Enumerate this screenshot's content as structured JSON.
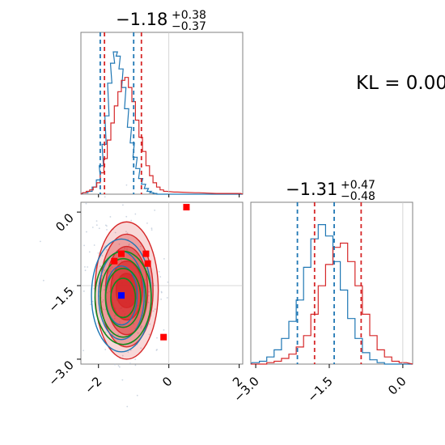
{
  "figure": {
    "kl_label": "KL = 0.00",
    "title_x": {
      "main": "−1.18",
      "sup": "+0.38",
      "sub": "−0.37"
    },
    "title_y": {
      "main": "−1.31",
      "sup": "+0.47",
      "sub": "−0.48"
    }
  },
  "colors": {
    "blue": "#1f77b4",
    "red": "#d62728",
    "green": "#138a1d",
    "marker_red": "#ff0000",
    "marker_blue": "#0000ff"
  },
  "chart_data": [
    {
      "type": "histogram",
      "panel": "top-left",
      "xlim": [
        -2.5,
        2.1
      ],
      "x_ticks": [
        "−2",
        "0",
        "2"
      ],
      "series": [
        {
          "name": "",
          "color": "blue",
          "centers": [
            -2.36,
            -2.24,
            -2.12,
            -2.0,
            -1.92,
            -1.84,
            -1.76,
            -1.68,
            -1.6,
            -1.52,
            -1.44,
            -1.36,
            -1.28,
            -1.2,
            -1.12,
            -1.04,
            -0.96,
            -0.88,
            -0.8,
            -0.72,
            -0.64,
            -0.56,
            -0.48,
            -0.4,
            -0.28
          ],
          "values": [
            0.01,
            0.02,
            0.05,
            0.1,
            0.2,
            0.35,
            0.55,
            0.78,
            0.92,
            1.0,
            0.97,
            0.88,
            0.75,
            0.6,
            0.47,
            0.36,
            0.26,
            0.18,
            0.11,
            0.07,
            0.04,
            0.02,
            0.01,
            0.005,
            0.0
          ]
        },
        {
          "name": "",
          "color": "red",
          "centers": [
            -2.4,
            -2.3,
            -2.2,
            -2.1,
            -2.0,
            -1.9,
            -1.8,
            -1.7,
            -1.6,
            -1.5,
            -1.4,
            -1.3,
            -1.2,
            -1.1,
            -1.0,
            -0.9,
            -0.8,
            -0.7,
            -0.6,
            -0.5,
            -0.4,
            -0.3,
            -0.2,
            -0.1,
            0.2,
            0.8,
            1.4,
            2.0
          ],
          "values": [
            0.01,
            0.02,
            0.03,
            0.05,
            0.08,
            0.15,
            0.25,
            0.38,
            0.5,
            0.62,
            0.72,
            0.8,
            0.82,
            0.75,
            0.65,
            0.52,
            0.4,
            0.3,
            0.2,
            0.13,
            0.08,
            0.05,
            0.03,
            0.02,
            0.015,
            0.01,
            0.005,
            0.005
          ]
        }
      ],
      "quantiles": {
        "blue": [
          -1.95,
          -1.0
        ],
        "red": [
          -1.83,
          -0.78
        ]
      }
    },
    {
      "type": "histogram",
      "panel": "bottom-right",
      "xlim": [
        -3.1,
        0.2
      ],
      "x_ticks": [
        "−3.0",
        "−1.5",
        "0.0"
      ],
      "series": [
        {
          "name": "",
          "color": "blue",
          "centers": [
            -3.0,
            -2.85,
            -2.7,
            -2.55,
            -2.4,
            -2.25,
            -2.1,
            -1.95,
            -1.8,
            -1.65,
            -1.5,
            -1.35,
            -1.2,
            -1.05,
            -0.9,
            -0.75,
            -0.6,
            -0.45,
            -0.3
          ],
          "values": [
            0.01,
            0.02,
            0.05,
            0.1,
            0.18,
            0.3,
            0.45,
            0.68,
            0.88,
            0.98,
            0.9,
            0.72,
            0.52,
            0.32,
            0.18,
            0.08,
            0.03,
            0.01,
            0.0
          ]
        },
        {
          "name": "",
          "color": "red",
          "centers": [
            -3.0,
            -2.85,
            -2.7,
            -2.55,
            -2.4,
            -2.25,
            -2.1,
            -1.95,
            -1.8,
            -1.65,
            -1.5,
            -1.35,
            -1.2,
            -1.05,
            -0.9,
            -0.75,
            -0.6,
            -0.45,
            -0.3,
            -0.15,
            0.0
          ],
          "values": [
            0.0,
            0.0,
            0.01,
            0.02,
            0.04,
            0.07,
            0.12,
            0.2,
            0.35,
            0.55,
            0.7,
            0.82,
            0.85,
            0.72,
            0.55,
            0.35,
            0.2,
            0.1,
            0.05,
            0.02,
            0.01
          ]
        }
      ],
      "quantiles": {
        "blue": [
          -2.15,
          -1.4
        ],
        "red": [
          -1.8,
          -0.85
        ]
      }
    },
    {
      "type": "scatter",
      "panel": "bottom-left",
      "xlim": [
        -2.5,
        2.1
      ],
      "ylim": [
        -3.1,
        0.2
      ],
      "x_ticks": [
        "−2",
        "0",
        "2"
      ],
      "y_ticks": [
        "0.0",
        "−1.5",
        "−3.0"
      ],
      "red_markers": [
        [
          0.5,
          0.1
        ],
        [
          -1.35,
          -0.85
        ],
        [
          -0.65,
          -0.85
        ],
        [
          -1.55,
          -1.0
        ],
        [
          -0.6,
          -1.05
        ],
        [
          -0.15,
          -2.55
        ]
      ],
      "blue_markers": [
        [
          -1.35,
          -1.7
        ]
      ],
      "red_contours": {
        "center": [
          -1.2,
          -1.6
        ],
        "rx": [
          0.9,
          0.75,
          0.6,
          0.45,
          0.3
        ],
        "ry": [
          1.4,
          1.15,
          0.9,
          0.6,
          0.35
        ]
      },
      "blue_contours": {
        "center": [
          -1.35,
          -1.7
        ],
        "rx": [
          0.85,
          0.65,
          0.45
        ],
        "ry": [
          1.15,
          0.9,
          0.6
        ]
      },
      "green_contours": {
        "center": [
          -1.3,
          -1.75
        ],
        "rx": [
          0.8,
          0.65,
          0.5,
          0.35
        ],
        "ry": [
          0.95,
          0.8,
          0.6,
          0.4
        ]
      }
    }
  ]
}
